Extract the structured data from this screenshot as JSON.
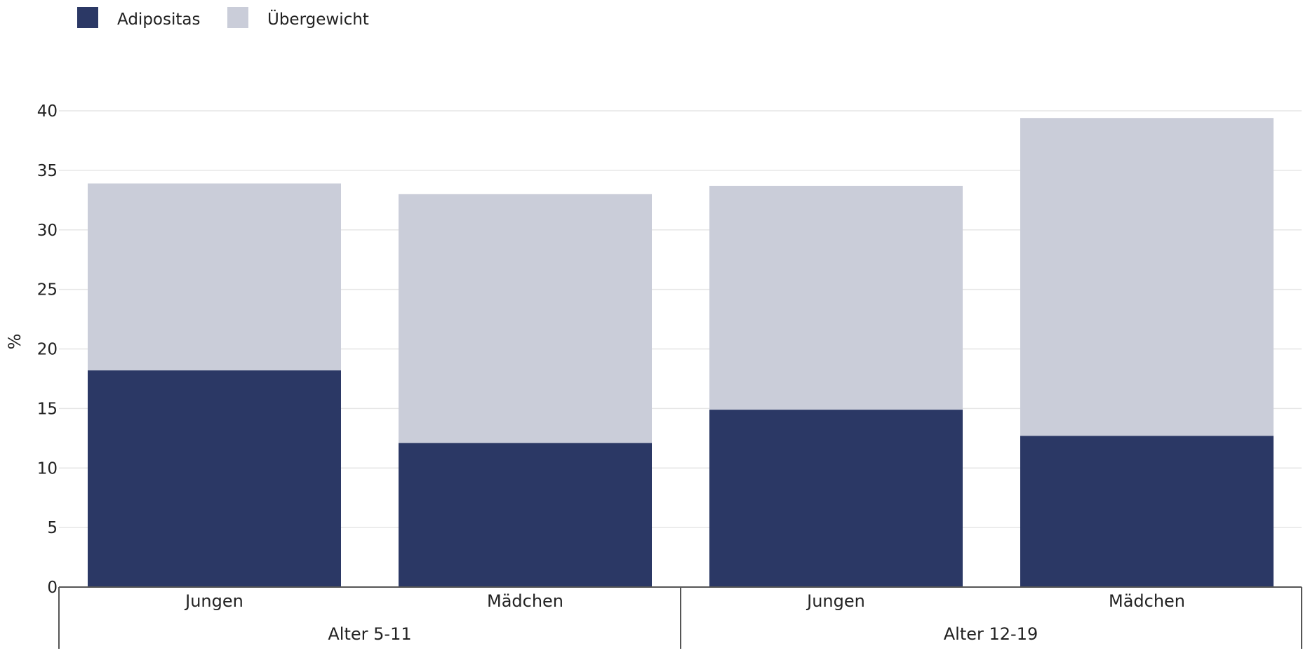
{
  "chart_data": {
    "type": "bar",
    "stacked": true,
    "ylabel": "%",
    "ylim": [
      0,
      40
    ],
    "yticks": [
      "0",
      "5",
      "10",
      "15",
      "20",
      "25",
      "30",
      "35",
      "40"
    ],
    "categories": [
      "Jungen",
      "Mädchen",
      "Jungen",
      "Mädchen"
    ],
    "groups": [
      {
        "label": "Alter 5-11",
        "categories": [
          0,
          1
        ]
      },
      {
        "label": "Alter 12-19",
        "categories": [
          2,
          3
        ]
      }
    ],
    "series": [
      {
        "name": "Adipositas",
        "color": "#2b3865",
        "values": [
          18.2,
          12.1,
          14.9,
          12.7
        ]
      },
      {
        "name": "Übergewicht",
        "color": "#cacdd9",
        "values": [
          15.7,
          20.9,
          18.8,
          26.7
        ]
      }
    ],
    "legend_position": "top-left",
    "grid": true
  }
}
